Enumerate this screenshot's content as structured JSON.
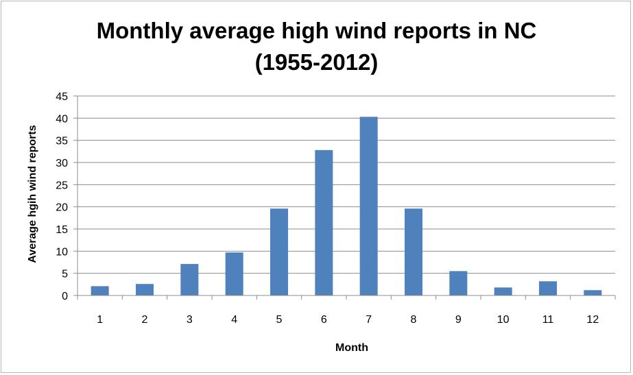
{
  "chart_data": {
    "type": "bar",
    "title_line1": "Monthly average high wind reports in NC",
    "title_line2": "(1955-2012)",
    "xlabel": "Month",
    "ylabel": "Average hgih wind reports",
    "categories": [
      "1",
      "2",
      "3",
      "4",
      "5",
      "6",
      "7",
      "8",
      "9",
      "10",
      "11",
      "12"
    ],
    "values": [
      2.1,
      2.6,
      7.1,
      9.7,
      19.6,
      32.8,
      40.3,
      19.6,
      5.5,
      1.8,
      3.2,
      1.2
    ],
    "ylim": [
      0,
      45
    ],
    "yticks": [
      "0",
      "5",
      "10",
      "15",
      "20",
      "25",
      "30",
      "35",
      "40",
      "45"
    ],
    "grid": true,
    "bar_color": "#4f81bd"
  }
}
